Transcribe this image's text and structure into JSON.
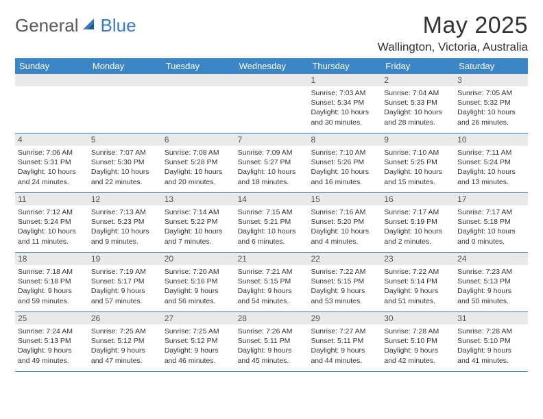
{
  "brand": {
    "general": "General",
    "blue": "Blue"
  },
  "title": "May 2025",
  "location": "Wallington, Victoria, Australia",
  "colors": {
    "header_bg": "#3b86c7",
    "border": "#3b7bbf",
    "daynum_bg": "#e9e9e9",
    "text": "#333333"
  },
  "days_of_week": [
    "Sunday",
    "Monday",
    "Tuesday",
    "Wednesday",
    "Thursday",
    "Friday",
    "Saturday"
  ],
  "weeks": [
    [
      {
        "n": "",
        "sr": "",
        "ss": "",
        "dl": ""
      },
      {
        "n": "",
        "sr": "",
        "ss": "",
        "dl": ""
      },
      {
        "n": "",
        "sr": "",
        "ss": "",
        "dl": ""
      },
      {
        "n": "",
        "sr": "",
        "ss": "",
        "dl": ""
      },
      {
        "n": "1",
        "sr": "Sunrise: 7:03 AM",
        "ss": "Sunset: 5:34 PM",
        "dl": "Daylight: 10 hours and 30 minutes."
      },
      {
        "n": "2",
        "sr": "Sunrise: 7:04 AM",
        "ss": "Sunset: 5:33 PM",
        "dl": "Daylight: 10 hours and 28 minutes."
      },
      {
        "n": "3",
        "sr": "Sunrise: 7:05 AM",
        "ss": "Sunset: 5:32 PM",
        "dl": "Daylight: 10 hours and 26 minutes."
      }
    ],
    [
      {
        "n": "4",
        "sr": "Sunrise: 7:06 AM",
        "ss": "Sunset: 5:31 PM",
        "dl": "Daylight: 10 hours and 24 minutes."
      },
      {
        "n": "5",
        "sr": "Sunrise: 7:07 AM",
        "ss": "Sunset: 5:30 PM",
        "dl": "Daylight: 10 hours and 22 minutes."
      },
      {
        "n": "6",
        "sr": "Sunrise: 7:08 AM",
        "ss": "Sunset: 5:28 PM",
        "dl": "Daylight: 10 hours and 20 minutes."
      },
      {
        "n": "7",
        "sr": "Sunrise: 7:09 AM",
        "ss": "Sunset: 5:27 PM",
        "dl": "Daylight: 10 hours and 18 minutes."
      },
      {
        "n": "8",
        "sr": "Sunrise: 7:10 AM",
        "ss": "Sunset: 5:26 PM",
        "dl": "Daylight: 10 hours and 16 minutes."
      },
      {
        "n": "9",
        "sr": "Sunrise: 7:10 AM",
        "ss": "Sunset: 5:25 PM",
        "dl": "Daylight: 10 hours and 15 minutes."
      },
      {
        "n": "10",
        "sr": "Sunrise: 7:11 AM",
        "ss": "Sunset: 5:24 PM",
        "dl": "Daylight: 10 hours and 13 minutes."
      }
    ],
    [
      {
        "n": "11",
        "sr": "Sunrise: 7:12 AM",
        "ss": "Sunset: 5:24 PM",
        "dl": "Daylight: 10 hours and 11 minutes."
      },
      {
        "n": "12",
        "sr": "Sunrise: 7:13 AM",
        "ss": "Sunset: 5:23 PM",
        "dl": "Daylight: 10 hours and 9 minutes."
      },
      {
        "n": "13",
        "sr": "Sunrise: 7:14 AM",
        "ss": "Sunset: 5:22 PM",
        "dl": "Daylight: 10 hours and 7 minutes."
      },
      {
        "n": "14",
        "sr": "Sunrise: 7:15 AM",
        "ss": "Sunset: 5:21 PM",
        "dl": "Daylight: 10 hours and 6 minutes."
      },
      {
        "n": "15",
        "sr": "Sunrise: 7:16 AM",
        "ss": "Sunset: 5:20 PM",
        "dl": "Daylight: 10 hours and 4 minutes."
      },
      {
        "n": "16",
        "sr": "Sunrise: 7:17 AM",
        "ss": "Sunset: 5:19 PM",
        "dl": "Daylight: 10 hours and 2 minutes."
      },
      {
        "n": "17",
        "sr": "Sunrise: 7:17 AM",
        "ss": "Sunset: 5:18 PM",
        "dl": "Daylight: 10 hours and 0 minutes."
      }
    ],
    [
      {
        "n": "18",
        "sr": "Sunrise: 7:18 AM",
        "ss": "Sunset: 5:18 PM",
        "dl": "Daylight: 9 hours and 59 minutes."
      },
      {
        "n": "19",
        "sr": "Sunrise: 7:19 AM",
        "ss": "Sunset: 5:17 PM",
        "dl": "Daylight: 9 hours and 57 minutes."
      },
      {
        "n": "20",
        "sr": "Sunrise: 7:20 AM",
        "ss": "Sunset: 5:16 PM",
        "dl": "Daylight: 9 hours and 56 minutes."
      },
      {
        "n": "21",
        "sr": "Sunrise: 7:21 AM",
        "ss": "Sunset: 5:15 PM",
        "dl": "Daylight: 9 hours and 54 minutes."
      },
      {
        "n": "22",
        "sr": "Sunrise: 7:22 AM",
        "ss": "Sunset: 5:15 PM",
        "dl": "Daylight: 9 hours and 53 minutes."
      },
      {
        "n": "23",
        "sr": "Sunrise: 7:22 AM",
        "ss": "Sunset: 5:14 PM",
        "dl": "Daylight: 9 hours and 51 minutes."
      },
      {
        "n": "24",
        "sr": "Sunrise: 7:23 AM",
        "ss": "Sunset: 5:13 PM",
        "dl": "Daylight: 9 hours and 50 minutes."
      }
    ],
    [
      {
        "n": "25",
        "sr": "Sunrise: 7:24 AM",
        "ss": "Sunset: 5:13 PM",
        "dl": "Daylight: 9 hours and 49 minutes."
      },
      {
        "n": "26",
        "sr": "Sunrise: 7:25 AM",
        "ss": "Sunset: 5:12 PM",
        "dl": "Daylight: 9 hours and 47 minutes."
      },
      {
        "n": "27",
        "sr": "Sunrise: 7:25 AM",
        "ss": "Sunset: 5:12 PM",
        "dl": "Daylight: 9 hours and 46 minutes."
      },
      {
        "n": "28",
        "sr": "Sunrise: 7:26 AM",
        "ss": "Sunset: 5:11 PM",
        "dl": "Daylight: 9 hours and 45 minutes."
      },
      {
        "n": "29",
        "sr": "Sunrise: 7:27 AM",
        "ss": "Sunset: 5:11 PM",
        "dl": "Daylight: 9 hours and 44 minutes."
      },
      {
        "n": "30",
        "sr": "Sunrise: 7:28 AM",
        "ss": "Sunset: 5:10 PM",
        "dl": "Daylight: 9 hours and 42 minutes."
      },
      {
        "n": "31",
        "sr": "Sunrise: 7:28 AM",
        "ss": "Sunset: 5:10 PM",
        "dl": "Daylight: 9 hours and 41 minutes."
      }
    ]
  ]
}
